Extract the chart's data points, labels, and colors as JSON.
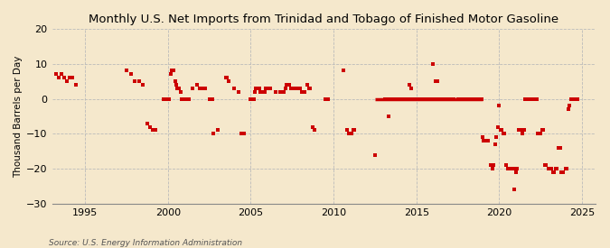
{
  "title": "Monthly U.S. Net Imports from Trinidad and Tobago of Finished Motor Gasoline",
  "ylabel": "Thousand Barrels per Day",
  "source": "Source: U.S. Energy Information Administration",
  "background_color": "#f5e8cc",
  "plot_background": "#f5e8cc",
  "marker_color": "#cc0000",
  "ylim": [
    -30,
    20
  ],
  "xlim": [
    1993.0,
    2025.8
  ],
  "yticks": [
    -30,
    -20,
    -10,
    0,
    10,
    20
  ],
  "xticks": [
    1995,
    2000,
    2005,
    2010,
    2015,
    2020,
    2025
  ],
  "data_points": [
    [
      1993.25,
      7
    ],
    [
      1993.42,
      6
    ],
    [
      1993.58,
      7
    ],
    [
      1993.75,
      6
    ],
    [
      1993.92,
      5
    ],
    [
      1994.08,
      6
    ],
    [
      1994.25,
      6
    ],
    [
      1994.42,
      4
    ],
    [
      1997.5,
      8
    ],
    [
      1997.75,
      7
    ],
    [
      1998.0,
      5
    ],
    [
      1998.25,
      5
    ],
    [
      1998.5,
      4
    ],
    [
      1998.75,
      -7
    ],
    [
      1998.92,
      -8
    ],
    [
      1999.08,
      -9
    ],
    [
      1999.25,
      -9
    ],
    [
      1999.75,
      0
    ],
    [
      1999.92,
      0
    ],
    [
      2000.0,
      0
    ],
    [
      2000.08,
      0
    ],
    [
      2000.17,
      7
    ],
    [
      2000.25,
      8
    ],
    [
      2000.33,
      8
    ],
    [
      2000.42,
      5
    ],
    [
      2000.5,
      4
    ],
    [
      2000.58,
      3
    ],
    [
      2000.67,
      3
    ],
    [
      2000.75,
      2
    ],
    [
      2000.83,
      0
    ],
    [
      2000.92,
      0
    ],
    [
      2001.0,
      0
    ],
    [
      2001.08,
      0
    ],
    [
      2001.17,
      0
    ],
    [
      2001.25,
      0
    ],
    [
      2001.5,
      3
    ],
    [
      2001.75,
      4
    ],
    [
      2001.92,
      3
    ],
    [
      2002.08,
      3
    ],
    [
      2002.25,
      3
    ],
    [
      2002.5,
      0
    ],
    [
      2002.67,
      0
    ],
    [
      2002.75,
      -10
    ],
    [
      2003.0,
      -9
    ],
    [
      2003.5,
      6
    ],
    [
      2003.58,
      6
    ],
    [
      2003.67,
      5
    ],
    [
      2004.0,
      3
    ],
    [
      2004.25,
      2
    ],
    [
      2004.42,
      -10
    ],
    [
      2004.58,
      -10
    ],
    [
      2005.0,
      0
    ],
    [
      2005.08,
      0
    ],
    [
      2005.17,
      0
    ],
    [
      2005.25,
      2
    ],
    [
      2005.33,
      3
    ],
    [
      2005.5,
      3
    ],
    [
      2005.58,
      2
    ],
    [
      2005.67,
      2
    ],
    [
      2005.75,
      2
    ],
    [
      2005.83,
      2
    ],
    [
      2005.92,
      3
    ],
    [
      2006.0,
      3
    ],
    [
      2006.08,
      3
    ],
    [
      2006.17,
      3
    ],
    [
      2006.5,
      2
    ],
    [
      2006.75,
      2
    ],
    [
      2006.92,
      2
    ],
    [
      2007.0,
      2
    ],
    [
      2007.08,
      3
    ],
    [
      2007.17,
      4
    ],
    [
      2007.25,
      4
    ],
    [
      2007.33,
      4
    ],
    [
      2007.42,
      3
    ],
    [
      2007.5,
      3
    ],
    [
      2007.67,
      3
    ],
    [
      2007.75,
      3
    ],
    [
      2007.83,
      3
    ],
    [
      2007.92,
      3
    ],
    [
      2008.0,
      3
    ],
    [
      2008.08,
      2
    ],
    [
      2008.17,
      2
    ],
    [
      2008.25,
      2
    ],
    [
      2008.42,
      4
    ],
    [
      2008.5,
      3
    ],
    [
      2008.58,
      3
    ],
    [
      2008.75,
      -8
    ],
    [
      2008.83,
      -9
    ],
    [
      2009.5,
      0
    ],
    [
      2009.67,
      0
    ],
    [
      2010.58,
      8
    ],
    [
      2010.83,
      -9
    ],
    [
      2010.92,
      -10
    ],
    [
      2011.08,
      -10
    ],
    [
      2011.17,
      -9
    ],
    [
      2011.25,
      -9
    ],
    [
      2012.5,
      -16
    ],
    [
      2013.33,
      -5
    ],
    [
      2014.58,
      4
    ],
    [
      2014.67,
      3
    ],
    [
      2016.0,
      10
    ],
    [
      2016.17,
      5
    ],
    [
      2016.25,
      5
    ],
    [
      2013.08,
      0
    ],
    [
      2013.17,
      0
    ],
    [
      2013.25,
      0
    ],
    [
      2013.5,
      0
    ],
    [
      2013.67,
      0
    ],
    [
      2013.75,
      0
    ],
    [
      2013.83,
      0
    ],
    [
      2013.92,
      0
    ],
    [
      2014.0,
      0
    ],
    [
      2014.08,
      0
    ],
    [
      2014.17,
      0
    ],
    [
      2014.25,
      0
    ],
    [
      2014.33,
      0
    ],
    [
      2014.5,
      0
    ],
    [
      2014.75,
      0
    ],
    [
      2014.83,
      0
    ],
    [
      2014.92,
      0
    ],
    [
      2015.0,
      0
    ],
    [
      2015.08,
      0
    ],
    [
      2015.17,
      0
    ],
    [
      2015.25,
      0
    ],
    [
      2015.33,
      0
    ],
    [
      2015.42,
      0
    ],
    [
      2015.5,
      0
    ],
    [
      2015.58,
      0
    ],
    [
      2015.67,
      0
    ],
    [
      2015.75,
      0
    ],
    [
      2015.83,
      0
    ],
    [
      2015.92,
      0
    ],
    [
      2016.08,
      0
    ],
    [
      2016.33,
      0
    ],
    [
      2016.5,
      0
    ],
    [
      2016.67,
      0
    ],
    [
      2016.75,
      0
    ],
    [
      2016.83,
      0
    ],
    [
      2016.92,
      0
    ],
    [
      2017.0,
      0
    ],
    [
      2017.08,
      0
    ],
    [
      2017.17,
      0
    ],
    [
      2017.25,
      0
    ],
    [
      2017.5,
      0
    ],
    [
      2017.58,
      0
    ],
    [
      2017.67,
      0
    ],
    [
      2017.75,
      0
    ],
    [
      2017.83,
      0
    ],
    [
      2017.92,
      0
    ],
    [
      2018.0,
      0
    ],
    [
      2018.08,
      0
    ],
    [
      2018.17,
      0
    ],
    [
      2018.25,
      0
    ],
    [
      2018.33,
      0
    ],
    [
      2018.42,
      0
    ],
    [
      2018.5,
      0
    ],
    [
      2018.58,
      0
    ],
    [
      2018.67,
      0
    ],
    [
      2018.75,
      0
    ],
    [
      2018.83,
      0
    ],
    [
      2018.92,
      0
    ],
    [
      2019.0,
      -11
    ],
    [
      2019.08,
      -12
    ],
    [
      2019.25,
      -12
    ],
    [
      2019.33,
      -12
    ],
    [
      2019.5,
      -19
    ],
    [
      2019.58,
      -20
    ],
    [
      2019.67,
      -19
    ],
    [
      2019.75,
      -13
    ],
    [
      2019.83,
      -11
    ],
    [
      2019.92,
      -8
    ],
    [
      2020.0,
      -2
    ],
    [
      2020.08,
      -9
    ],
    [
      2020.17,
      -9
    ],
    [
      2020.25,
      -10
    ],
    [
      2020.33,
      -10
    ],
    [
      2020.42,
      -19
    ],
    [
      2020.5,
      -20
    ],
    [
      2020.58,
      -20
    ],
    [
      2020.67,
      -20
    ],
    [
      2020.75,
      -20
    ],
    [
      2020.83,
      -20
    ],
    [
      2020.92,
      -26
    ],
    [
      2021.0,
      -21
    ],
    [
      2021.08,
      -20
    ],
    [
      2021.17,
      -9
    ],
    [
      2021.25,
      -9
    ],
    [
      2021.33,
      -9
    ],
    [
      2021.42,
      -10
    ],
    [
      2021.5,
      -9
    ],
    [
      2021.58,
      0
    ],
    [
      2021.67,
      0
    ],
    [
      2021.75,
      0
    ],
    [
      2021.83,
      0
    ],
    [
      2022.0,
      0
    ],
    [
      2022.08,
      0
    ],
    [
      2022.17,
      0
    ],
    [
      2022.25,
      0
    ],
    [
      2022.33,
      -10
    ],
    [
      2022.42,
      -10
    ],
    [
      2022.5,
      -10
    ],
    [
      2022.58,
      -9
    ],
    [
      2022.67,
      -9
    ],
    [
      2022.75,
      -19
    ],
    [
      2022.83,
      -19
    ],
    [
      2023.0,
      -20
    ],
    [
      2023.08,
      -20
    ],
    [
      2023.17,
      -20
    ],
    [
      2023.25,
      -21
    ],
    [
      2023.33,
      -21
    ],
    [
      2023.42,
      -20
    ],
    [
      2023.5,
      -20
    ],
    [
      2023.58,
      -14
    ],
    [
      2023.67,
      -14
    ],
    [
      2023.75,
      -21
    ],
    [
      2023.83,
      -21
    ],
    [
      2024.0,
      -20
    ],
    [
      2024.08,
      -20
    ],
    [
      2024.17,
      -3
    ],
    [
      2024.25,
      -2
    ],
    [
      2024.33,
      0
    ],
    [
      2024.5,
      0
    ],
    [
      2024.67,
      0
    ],
    [
      2024.75,
      0
    ]
  ],
  "zero_line_start": 2012.5,
  "zero_line_end": 2019.0
}
